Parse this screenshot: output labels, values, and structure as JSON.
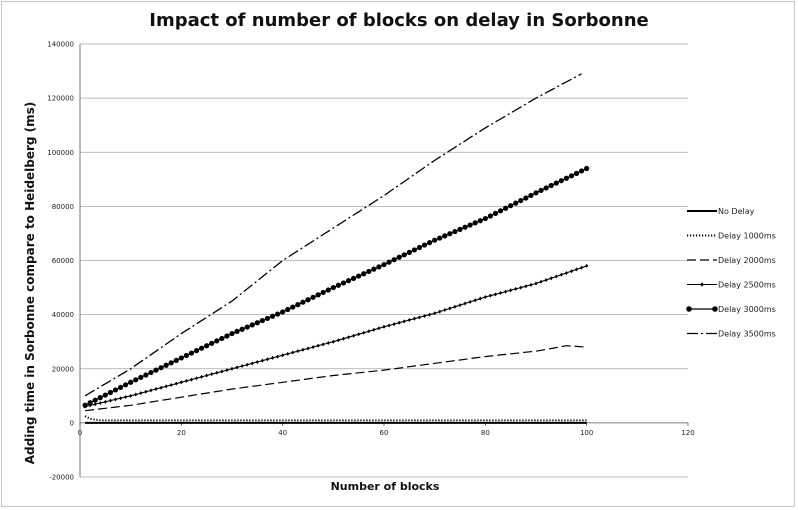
{
  "chart_data": {
    "type": "line",
    "title": "Impact of number of blocks on delay in Sorbonne",
    "xlabel": "Number of blocks",
    "ylabel": "Adding time in Sorbonne compare to Heidelberg (ms)",
    "xlim": [
      0,
      120
    ],
    "ylim": [
      -20000,
      140000
    ],
    "xticks": [
      0,
      20,
      40,
      60,
      80,
      100,
      120
    ],
    "yticks": [
      -20000,
      0,
      20000,
      40000,
      60000,
      80000,
      100000,
      120000,
      140000
    ],
    "grid": "horizontal",
    "legend_position": "right",
    "series": [
      {
        "name": "No Delay",
        "style": "solid",
        "color": "#000000",
        "x": [
          1,
          100
        ],
        "y": [
          0,
          0
        ]
      },
      {
        "name": "Delay 1000ms",
        "style": "dotted",
        "color": "#000000",
        "x": [
          1,
          2,
          3,
          4,
          5,
          10,
          20,
          40,
          60,
          80,
          100
        ],
        "y": [
          2500,
          1500,
          1200,
          1000,
          900,
          900,
          900,
          900,
          900,
          900,
          900
        ]
      },
      {
        "name": "Delay 2000ms",
        "style": "dashed",
        "color": "#000000",
        "x": [
          1,
          10,
          20,
          30,
          40,
          50,
          60,
          70,
          80,
          90,
          96,
          100
        ],
        "y": [
          4500,
          6500,
          9500,
          12500,
          15000,
          17500,
          19500,
          22000,
          24500,
          26500,
          28500,
          28000
        ]
      },
      {
        "name": "Delay 2500ms",
        "style": "solid-diamond",
        "color": "#000000",
        "x": [
          1,
          10,
          20,
          30,
          40,
          50,
          60,
          70,
          80,
          90,
          100
        ],
        "y": [
          6000,
          10000,
          15000,
          20000,
          25000,
          30000,
          35500,
          40500,
          46500,
          51500,
          58000
        ]
      },
      {
        "name": "Delay 3000ms",
        "style": "solid-circle",
        "color": "#000000",
        "x": [
          1,
          10,
          20,
          30,
          40,
          50,
          60,
          70,
          80,
          90,
          100
        ],
        "y": [
          6500,
          15000,
          24000,
          33000,
          41000,
          50000,
          58500,
          67500,
          75500,
          85000,
          94000
        ]
      },
      {
        "name": "Delay 3500ms",
        "style": "dash-dot",
        "color": "#000000",
        "x": [
          1,
          10,
          20,
          30,
          40,
          50,
          60,
          70,
          80,
          90,
          99
        ],
        "y": [
          10000,
          20000,
          33000,
          45000,
          60000,
          72000,
          84000,
          97000,
          109000,
          120000,
          129000
        ]
      }
    ]
  }
}
